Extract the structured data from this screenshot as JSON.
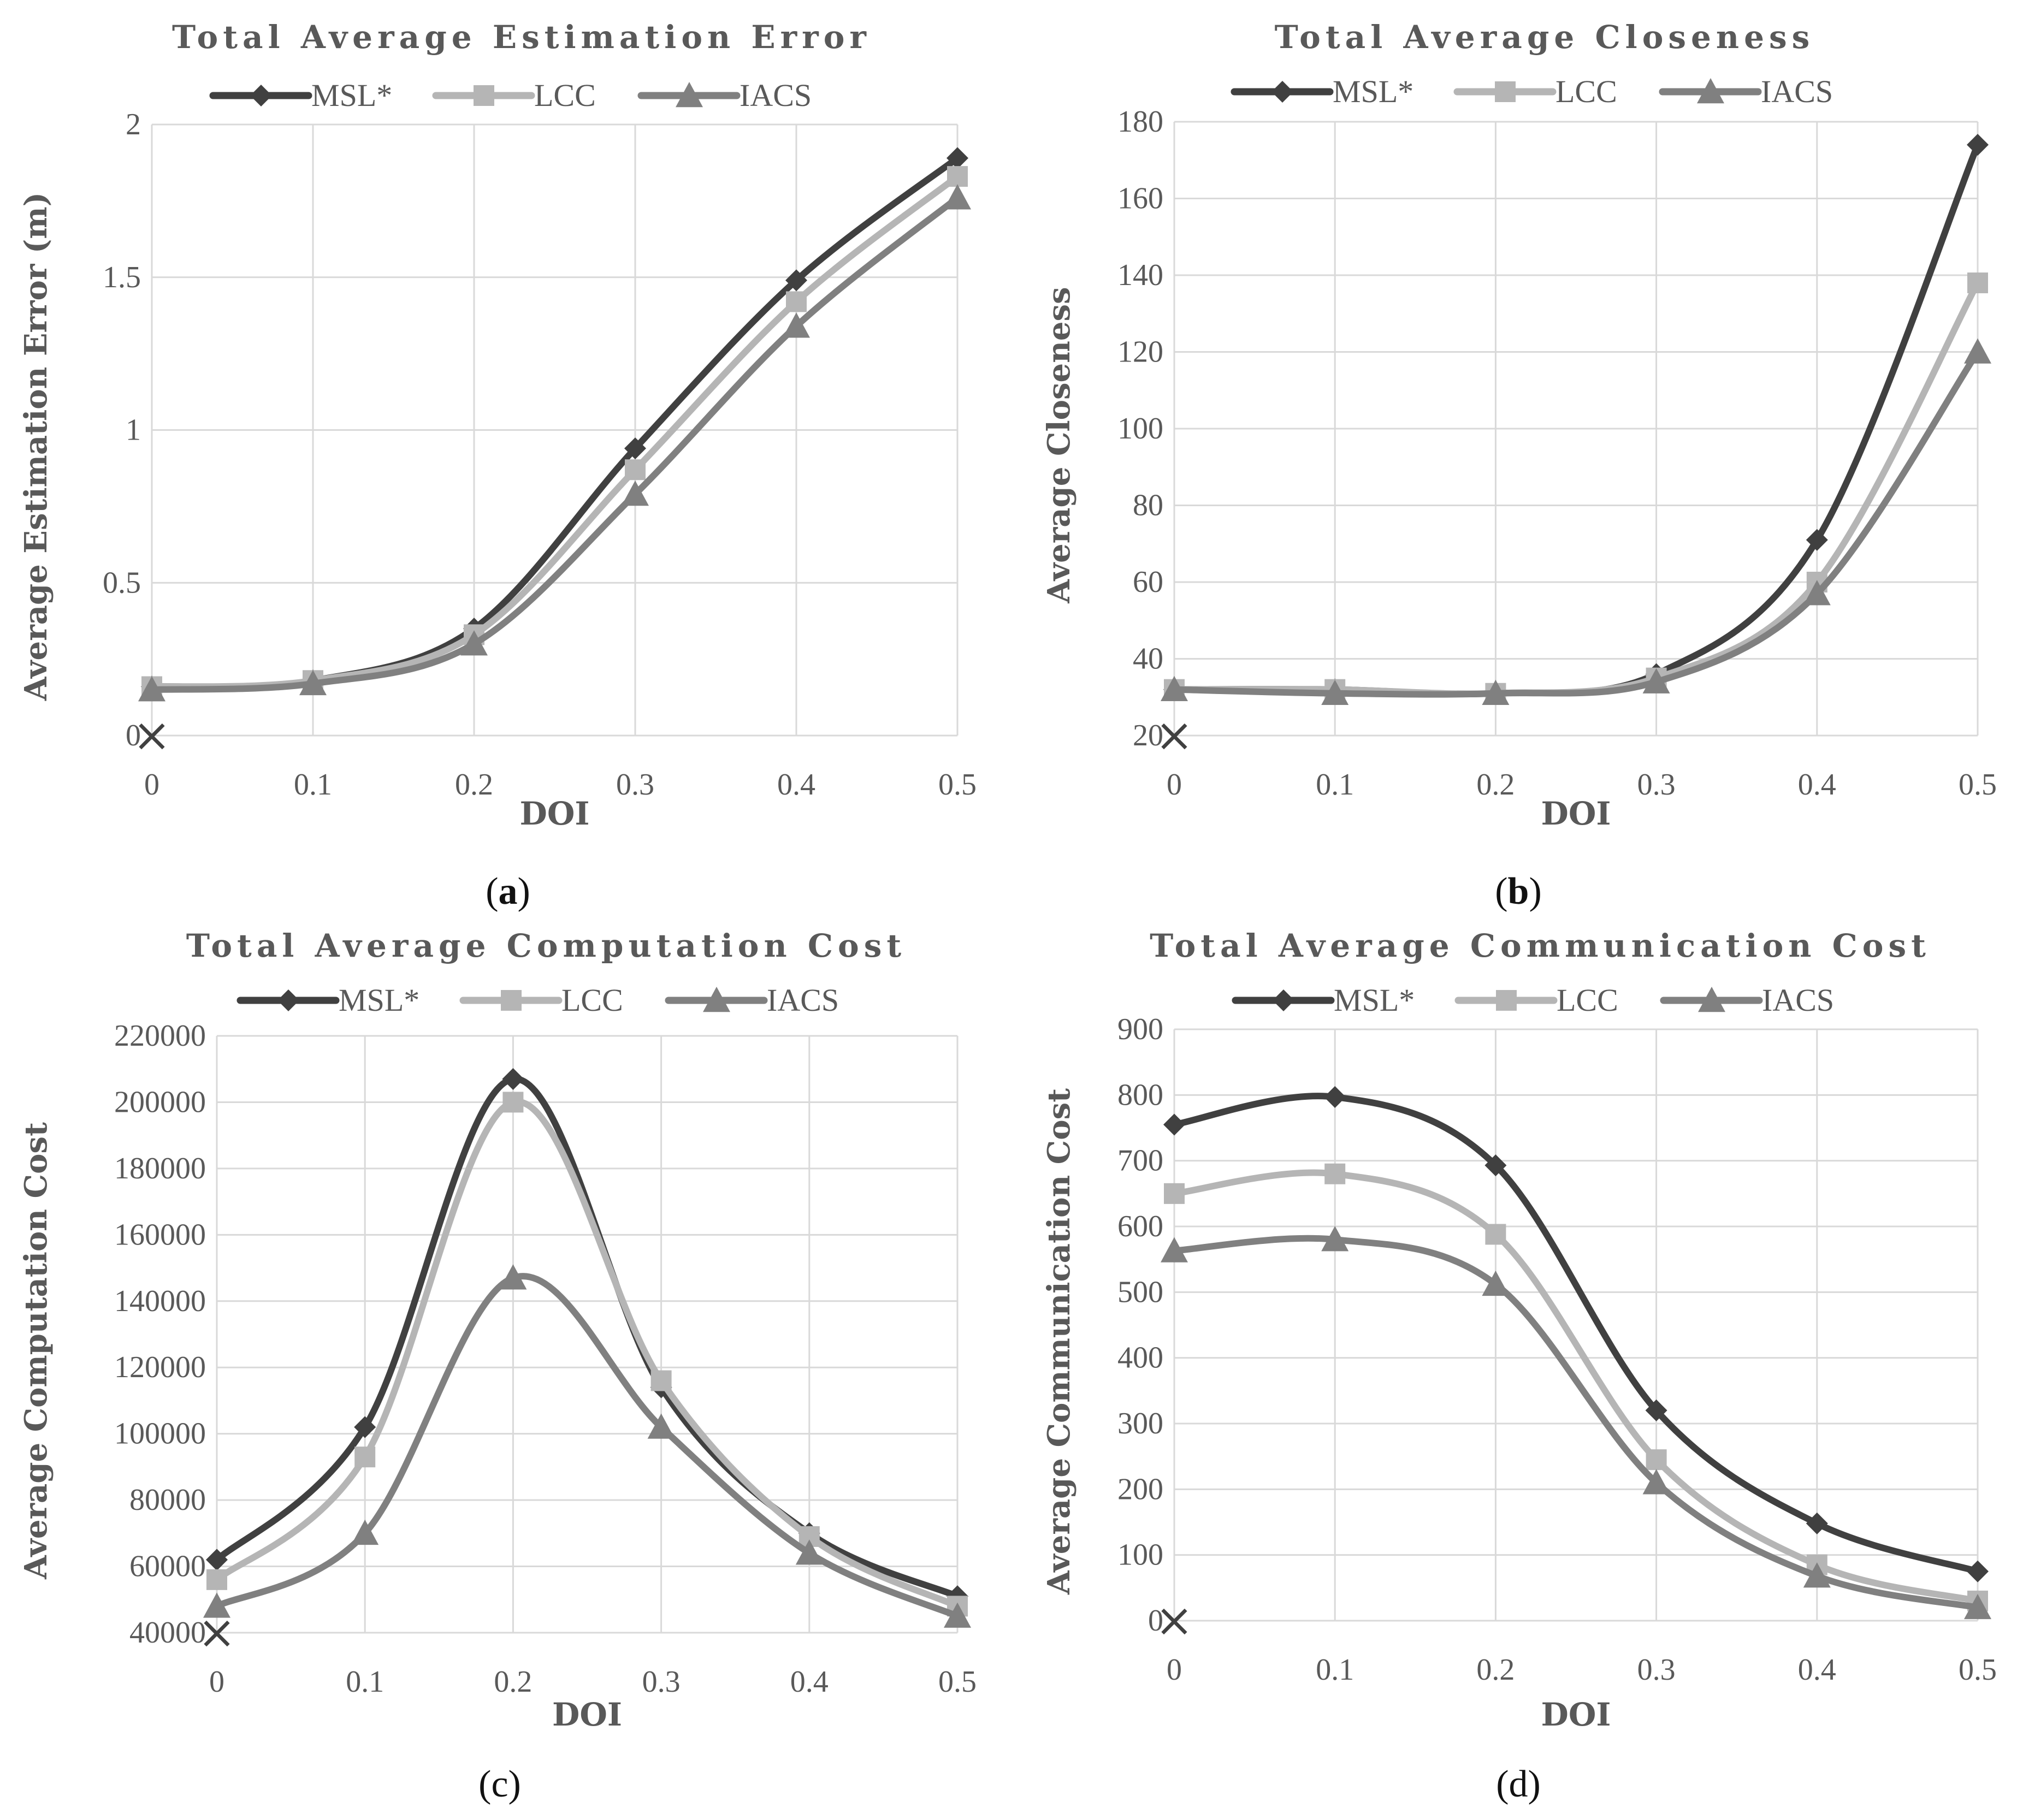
{
  "colors": {
    "msl": "#404040",
    "lcc": "#b5b5b5",
    "iacs": "#808080",
    "grid": "#d9d9d9",
    "text": "#595959"
  },
  "series_names": [
    "MSL*",
    "LCC",
    "IACS"
  ],
  "markers": [
    "diamond",
    "square",
    "triangle"
  ],
  "chart_data": [
    {
      "id": "a",
      "type": "line",
      "title": "Total Average Estimation Error",
      "xlabel": "DOI",
      "ylabel": "Average Estimation Error (m)",
      "caption_letter": "a",
      "caption_bold": true,
      "x": [
        0,
        0.1,
        0.2,
        0.3,
        0.4,
        0.5
      ],
      "x_tick_labels": [
        "0",
        "0.1",
        "0.2",
        "0.3",
        "0.4",
        "0.5"
      ],
      "ylim": [
        0,
        2
      ],
      "y_ticks": [
        0,
        0.5,
        1,
        1.5,
        2
      ],
      "y_tick_labels": [
        "0",
        "0.5",
        "1",
        "1.5",
        "2"
      ],
      "origin_marker": "×",
      "series": [
        {
          "name": "MSL*",
          "values": [
            0.16,
            0.18,
            0.35,
            0.94,
            1.49,
            1.89
          ]
        },
        {
          "name": "LCC",
          "values": [
            0.16,
            0.18,
            0.33,
            0.87,
            1.42,
            1.83
          ]
        },
        {
          "name": "IACS",
          "values": [
            0.15,
            0.17,
            0.3,
            0.79,
            1.34,
            1.76
          ]
        }
      ]
    },
    {
      "id": "b",
      "type": "line",
      "title": "Total Average Closeness",
      "xlabel": "DOI",
      "ylabel": "Average Closeness",
      "caption_letter": "b",
      "caption_bold": true,
      "x": [
        0,
        0.1,
        0.2,
        0.3,
        0.4,
        0.5
      ],
      "x_tick_labels": [
        "0",
        "0.1",
        "0.2",
        "0.3",
        "0.4",
        "0.5"
      ],
      "ylim": [
        20,
        180
      ],
      "y_ticks": [
        20,
        40,
        60,
        80,
        100,
        120,
        140,
        160,
        180
      ],
      "y_tick_labels": [
        "20",
        "40",
        "60",
        "80",
        "100",
        "120",
        "140",
        "160",
        "180"
      ],
      "origin_marker": "×",
      "series": [
        {
          "name": "MSL*",
          "values": [
            32,
            32,
            31,
            36,
            71,
            174
          ]
        },
        {
          "name": "LCC",
          "values": [
            32,
            32,
            31,
            35,
            60,
            138
          ]
        },
        {
          "name": "IACS",
          "values": [
            32,
            31,
            31,
            34,
            57,
            120
          ]
        }
      ]
    },
    {
      "id": "c",
      "type": "line",
      "title": "Total Average Computation Cost",
      "xlabel": "DOI",
      "ylabel": "Average Computation Cost",
      "caption_letter": "c",
      "caption_bold": false,
      "x": [
        0,
        0.1,
        0.2,
        0.3,
        0.4,
        0.5
      ],
      "x_tick_labels": [
        "0",
        "0.1",
        "0.2",
        "0.3",
        "0.4",
        "0.5"
      ],
      "ylim": [
        40000,
        220000
      ],
      "y_ticks": [
        40000,
        60000,
        80000,
        100000,
        120000,
        140000,
        160000,
        180000,
        200000,
        220000
      ],
      "y_tick_labels": [
        "40000",
        "60000",
        "80000",
        "100000",
        "120000",
        "140000",
        "160000",
        "180000",
        "200000",
        "220000"
      ],
      "origin_marker": "×",
      "series": [
        {
          "name": "MSL*",
          "values": [
            62000,
            102000,
            207000,
            114000,
            70000,
            51000
          ]
        },
        {
          "name": "LCC",
          "values": [
            56000,
            93000,
            200000,
            116000,
            69000,
            48000
          ]
        },
        {
          "name": "IACS",
          "values": [
            48000,
            70000,
            147000,
            102000,
            64000,
            45000
          ]
        }
      ]
    },
    {
      "id": "d",
      "type": "line",
      "title": "Total Average Communication Cost",
      "xlabel": "DOI",
      "ylabel": "Average Communication Cost",
      "caption_letter": "d",
      "caption_bold": false,
      "x": [
        0,
        0.1,
        0.2,
        0.3,
        0.4,
        0.5
      ],
      "x_tick_labels": [
        "0",
        "0.1",
        "0.2",
        "0.3",
        "0.4",
        "0.5"
      ],
      "ylim": [
        0,
        900
      ],
      "y_ticks": [
        0,
        100,
        200,
        300,
        400,
        500,
        600,
        700,
        800,
        900
      ],
      "y_tick_labels": [
        "0",
        "100",
        "200",
        "300",
        "400",
        "500",
        "600",
        "700",
        "800",
        "900"
      ],
      "origin_marker": "×",
      "series": [
        {
          "name": "MSL*",
          "values": [
            755,
            797,
            693,
            320,
            148,
            75
          ]
        },
        {
          "name": "LCC",
          "values": [
            650,
            680,
            588,
            245,
            85,
            30
          ]
        },
        {
          "name": "IACS",
          "values": [
            563,
            580,
            512,
            210,
            68,
            20
          ]
        }
      ]
    }
  ]
}
